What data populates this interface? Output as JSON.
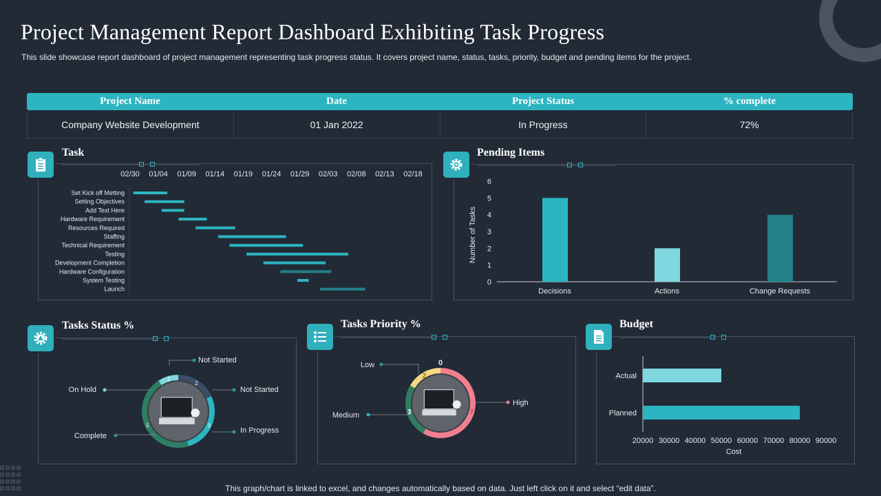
{
  "header": {
    "title": "Project Management Report Dashboard Exhibiting Task Progress",
    "subtitle": "This slide showcase report dashboard of project management representing task progress status. It covers project name, status, tasks, priority, budget and pending items for the project."
  },
  "project_table": {
    "columns": [
      "Project Name",
      "Date",
      "Project Status",
      "% complete"
    ],
    "row": [
      "Company Website Development",
      "01 Jan 2022",
      "In Progress",
      "72%"
    ]
  },
  "panels": {
    "task": "Task",
    "pending": "Pending Items",
    "status": "Tasks Status %",
    "priority": "Tasks Priority  %",
    "budget": "Budget"
  },
  "icons": {
    "task": "clipboard-icon",
    "pending": "settings-icon",
    "status": "gear-triangle-icon",
    "priority": "list-icon",
    "budget": "document-icon"
  },
  "colors": {
    "accent": "#2cb5c1",
    "light_teal": "#7fd7df",
    "dark_teal": "#238089",
    "pink": "#f07f8f",
    "yellow": "#f6d884",
    "green": "#2e7d62",
    "background": "#222a36"
  },
  "chart_data": [
    {
      "type": "bar",
      "orientation": "horizontal-gantt",
      "title": "Task",
      "x_tick_labels": [
        "02/30",
        "01/04",
        "01/09",
        "01/14",
        "01/19",
        "01/24",
        "01/29",
        "02/03",
        "02/08",
        "02/13",
        "02/18"
      ],
      "tasks": [
        {
          "name": "Set Kick off Metting",
          "start": 0.6,
          "duration": 1.2
        },
        {
          "name": "Setting Objectives",
          "start": 1.0,
          "duration": 1.4
        },
        {
          "name": "Add Text Here",
          "start": 1.6,
          "duration": 0.8
        },
        {
          "name": "Hardware Requirement",
          "start": 2.2,
          "duration": 1.0
        },
        {
          "name": "Resources Required",
          "start": 2.8,
          "duration": 1.4
        },
        {
          "name": "Staffing",
          "start": 3.6,
          "duration": 2.4
        },
        {
          "name": "Technical Requirement",
          "start": 4.0,
          "duration": 2.6
        },
        {
          "name": "Testing",
          "start": 4.6,
          "duration": 3.6
        },
        {
          "name": "Development Completion",
          "start": 5.2,
          "duration": 2.2
        },
        {
          "name": "Hardware Configuration",
          "start": 5.8,
          "duration": 1.8
        },
        {
          "name": "System Testing",
          "start": 6.4,
          "duration": 0.4
        },
        {
          "name": "Launch",
          "start": 7.2,
          "duration": 1.6
        }
      ]
    },
    {
      "type": "bar",
      "title": "Pending Items",
      "categories": [
        "Decisions",
        "Actions",
        "Change Requests"
      ],
      "values": [
        5,
        2,
        4
      ],
      "ylabel": "Number of Tasks",
      "ylim": [
        0,
        6
      ],
      "yticks": [
        0,
        1,
        2,
        3,
        4,
        5,
        6
      ]
    },
    {
      "type": "pie",
      "title": "Tasks Status %",
      "slices": [
        {
          "label": "Not Started",
          "value": 2
        },
        {
          "label": "In Progress",
          "value": 3
        },
        {
          "label": "Complete",
          "value": 5
        },
        {
          "label": "On Hold",
          "value": 1
        }
      ],
      "callouts": [
        "Not Started",
        "Not Started",
        "On Hold",
        "In Progress",
        "Complete"
      ]
    },
    {
      "type": "pie",
      "title": "Tasks Priority  %",
      "slices": [
        {
          "label": "Low",
          "value": 3
        },
        {
          "label": "Medium",
          "value": 2
        },
        {
          "label": "High",
          "value": 7
        }
      ],
      "top_value": "0"
    },
    {
      "type": "bar",
      "orientation": "horizontal",
      "title": "Budget",
      "categories": [
        "Actual",
        "Planned"
      ],
      "values": [
        50000,
        80000
      ],
      "xlabel": "Cost",
      "xlim": [
        20000,
        90000
      ],
      "xticks": [
        "20000",
        "30000",
        "40000",
        "50000",
        "60000",
        "70000",
        "80000",
        "90000"
      ]
    }
  ],
  "footer": "This graph/chart is linked to excel, and changes automatically based on data. Just left click on it and select “edit data”."
}
